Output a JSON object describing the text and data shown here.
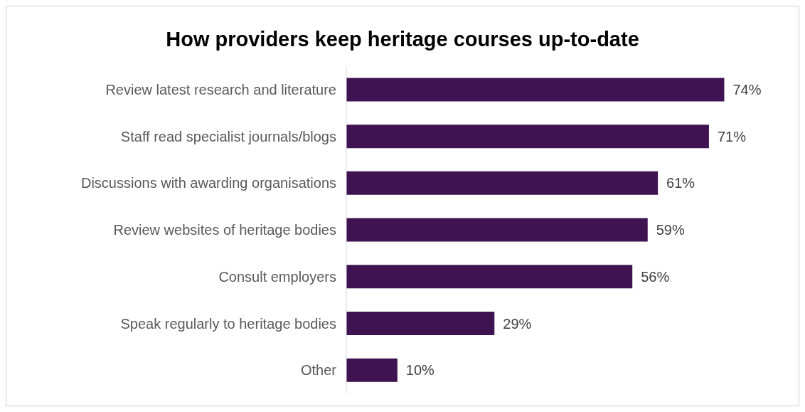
{
  "chart_data": {
    "type": "bar",
    "orientation": "horizontal",
    "title": "How providers keep heritage courses up-to-date",
    "categories": [
      "Review latest research and literature",
      "Staff read specialist journals/blogs",
      "Discussions with awarding organisations",
      "Review websites of heritage bodies",
      "Consult employers",
      "Speak regularly to heritage bodies",
      "Other"
    ],
    "values": [
      74,
      71,
      61,
      59,
      56,
      29,
      10
    ],
    "value_labels": [
      "74%",
      "71%",
      "61%",
      "59%",
      "56%",
      "29%",
      "10%"
    ],
    "color": "#3f1251",
    "grid": false,
    "legend": false,
    "tick_labels": "y"
  }
}
